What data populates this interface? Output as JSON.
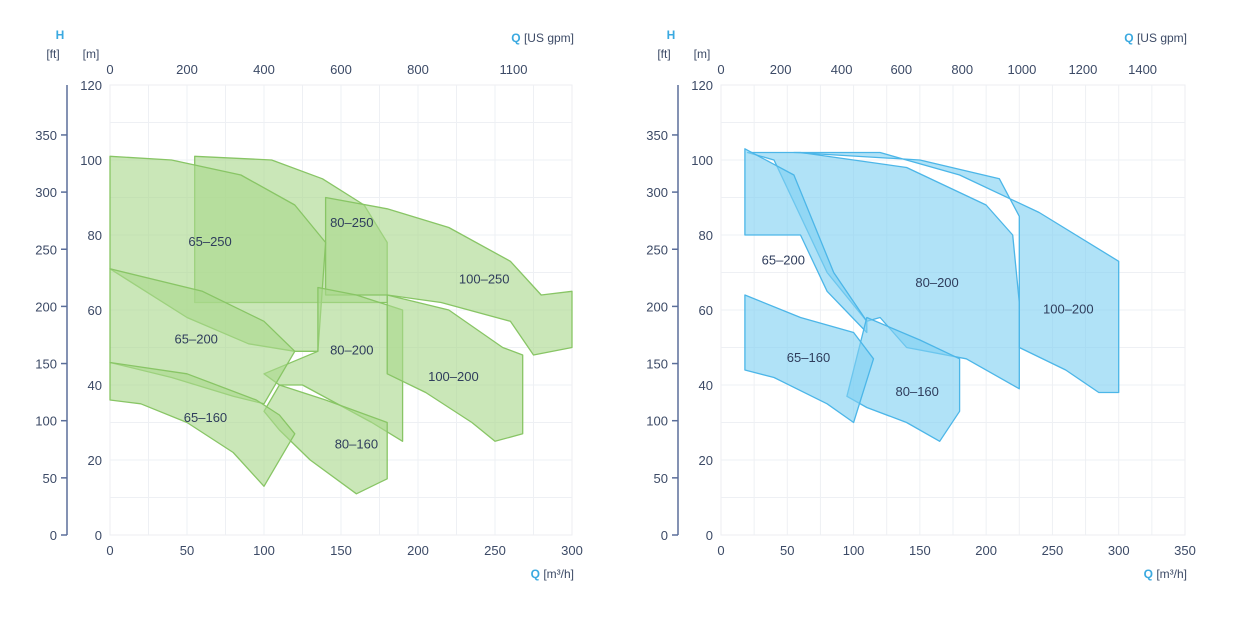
{
  "chart_data": [
    {
      "type": "area",
      "color": "#a9d98c",
      "stroke": "#88c565",
      "head_letter": "H",
      "flow_letter": "Q",
      "left_unit": "[ft]",
      "right_unit": "[m]",
      "top_unit": "[US gpm]",
      "bottom_unit": "[m³/h]",
      "x_range": [
        0,
        300
      ],
      "y_range": [
        0,
        120
      ],
      "x_ticks": [
        0,
        50,
        100,
        150,
        200,
        250,
        300
      ],
      "y_ticks": [
        0,
        20,
        40,
        60,
        80,
        100,
        120
      ],
      "ft_ticks": [
        0,
        50,
        100,
        150,
        200,
        250,
        300,
        350
      ],
      "gpm_ticks": [
        {
          "label": "0",
          "q": 0
        },
        {
          "label": "200",
          "q": 50
        },
        {
          "label": "400",
          "q": 100
        },
        {
          "label": "600",
          "q": 150
        },
        {
          "label": "800",
          "q": 200
        },
        {
          "label": "1100",
          "q": 262
        }
      ],
      "regions": [
        {
          "label": "80-250",
          "label_at": [
            157,
            83
          ],
          "points": [
            [
              55,
              101
            ],
            [
              105,
              100
            ],
            [
              138,
              95
            ],
            [
              165,
              88
            ],
            [
              180,
              78
            ],
            [
              180,
              62
            ],
            [
              140,
              62
            ],
            [
              55,
              62
            ]
          ]
        },
        {
          "label": "100-250",
          "label_at": [
            243,
            68
          ],
          "points": [
            [
              140,
              90
            ],
            [
              180,
              87
            ],
            [
              220,
              82
            ],
            [
              260,
              73
            ],
            [
              280,
              64
            ],
            [
              300,
              65
            ],
            [
              300,
              50
            ],
            [
              275,
              48
            ],
            [
              260,
              57
            ],
            [
              215,
              62
            ],
            [
              180,
              64
            ],
            [
              140,
              64
            ]
          ]
        },
        {
          "label": "65-250",
          "label_at": [
            65,
            78
          ],
          "points": [
            [
              0,
              101
            ],
            [
              40,
              100
            ],
            [
              85,
              96
            ],
            [
              120,
              88
            ],
            [
              140,
              78
            ],
            [
              135,
              49
            ],
            [
              120,
              49
            ],
            [
              90,
              51
            ],
            [
              50,
              58
            ],
            [
              0,
              71
            ]
          ]
        },
        {
          "label": "80-200",
          "label_at": [
            157,
            49
          ],
          "points": [
            [
              135,
              66
            ],
            [
              160,
              64
            ],
            [
              190,
              60
            ],
            [
              190,
              25
            ],
            [
              170,
              30
            ],
            [
              125,
              40
            ],
            [
              110,
              40
            ],
            [
              100,
              43
            ],
            [
              135,
              49
            ]
          ]
        },
        {
          "label": "100-200",
          "label_at": [
            223,
            42
          ],
          "points": [
            [
              180,
              64
            ],
            [
              220,
              60
            ],
            [
              255,
              50
            ],
            [
              268,
              48
            ],
            [
              268,
              27
            ],
            [
              250,
              25
            ],
            [
              235,
              30
            ],
            [
              205,
              38
            ],
            [
              180,
              43
            ]
          ]
        },
        {
          "label": "65-200",
          "label_at": [
            56,
            52
          ],
          "points": [
            [
              0,
              71
            ],
            [
              60,
              65
            ],
            [
              100,
              57
            ],
            [
              120,
              49
            ],
            [
              100,
              35
            ],
            [
              80,
              37
            ],
            [
              40,
              42
            ],
            [
              0,
              46
            ]
          ]
        },
        {
          "label": "80-160",
          "label_at": [
            160,
            24
          ],
          "points": [
            [
              110,
              40
            ],
            [
              140,
              36
            ],
            [
              180,
              30
            ],
            [
              180,
              15
            ],
            [
              160,
              11
            ],
            [
              130,
              20
            ],
            [
              110,
              28
            ],
            [
              100,
              33
            ]
          ]
        },
        {
          "label": "65-160",
          "label_at": [
            62,
            31
          ],
          "points": [
            [
              0,
              46
            ],
            [
              50,
              43
            ],
            [
              95,
              36
            ],
            [
              110,
              32
            ],
            [
              120,
              27
            ],
            [
              100,
              13
            ],
            [
              80,
              22
            ],
            [
              50,
              30
            ],
            [
              20,
              35
            ],
            [
              0,
              36
            ]
          ]
        }
      ]
    },
    {
      "type": "area",
      "color": "#7fd0f2",
      "stroke": "#4cb6e8",
      "head_letter": "H",
      "flow_letter": "Q",
      "left_unit": "[ft]",
      "right_unit": "[m]",
      "top_unit": "[US gpm]",
      "bottom_unit": "[m³/h]",
      "x_range": [
        0,
        350
      ],
      "y_range": [
        0,
        120
      ],
      "x_ticks": [
        0,
        50,
        100,
        150,
        200,
        250,
        300,
        350
      ],
      "y_ticks": [
        0,
        20,
        40,
        60,
        80,
        100,
        120
      ],
      "ft_ticks": [
        0,
        50,
        100,
        150,
        200,
        250,
        300,
        350
      ],
      "gpm_ticks": [
        {
          "label": "0",
          "q": 0
        },
        {
          "label": "200",
          "q": 45
        },
        {
          "label": "400",
          "q": 91
        },
        {
          "label": "600",
          "q": 136
        },
        {
          "label": "800",
          "q": 182
        },
        {
          "label": "1000",
          "q": 227
        },
        {
          "label": "1200",
          "q": 273
        },
        {
          "label": "1400",
          "q": 318
        }
      ],
      "regions": [
        {
          "label": "100-200",
          "label_at": [
            262,
            60
          ],
          "points": [
            [
              55,
              102
            ],
            [
              120,
              102
            ],
            [
              180,
              96
            ],
            [
              240,
              86
            ],
            [
              300,
              73
            ],
            [
              300,
              38
            ],
            [
              285,
              38
            ],
            [
              260,
              44
            ],
            [
              225,
              50
            ],
            [
              225,
              85
            ],
            [
              210,
              95
            ],
            [
              150,
              100
            ]
          ]
        },
        {
          "label": "80-200",
          "label_at": [
            163,
            67
          ],
          "points": [
            [
              20,
              102
            ],
            [
              60,
              102
            ],
            [
              140,
              98
            ],
            [
              200,
              88
            ],
            [
              220,
              80
            ],
            [
              225,
              62
            ],
            [
              225,
              39
            ],
            [
              185,
              47
            ],
            [
              140,
              50
            ],
            [
              120,
              58
            ],
            [
              110,
              57
            ],
            [
              80,
              70
            ],
            [
              40,
              100
            ]
          ]
        },
        {
          "label": "65-200",
          "label_at": [
            47,
            73
          ],
          "points": [
            [
              18,
              103
            ],
            [
              55,
              96
            ],
            [
              85,
              70
            ],
            [
              110,
              57
            ],
            [
              110,
              54
            ],
            [
              80,
              65
            ],
            [
              60,
              80
            ],
            [
              18,
              80
            ]
          ]
        },
        {
          "label": "80-160",
          "label_at": [
            148,
            38
          ],
          "points": [
            [
              110,
              58
            ],
            [
              150,
              52
            ],
            [
              180,
              47
            ],
            [
              180,
              33
            ],
            [
              165,
              25
            ],
            [
              140,
              30
            ],
            [
              110,
              34
            ],
            [
              95,
              37
            ]
          ]
        },
        {
          "label": "65-160",
          "label_at": [
            66,
            47
          ],
          "points": [
            [
              18,
              64
            ],
            [
              60,
              58
            ],
            [
              100,
              54
            ],
            [
              115,
              47
            ],
            [
              100,
              30
            ],
            [
              80,
              35
            ],
            [
              40,
              42
            ],
            [
              18,
              44
            ]
          ]
        }
      ]
    }
  ]
}
